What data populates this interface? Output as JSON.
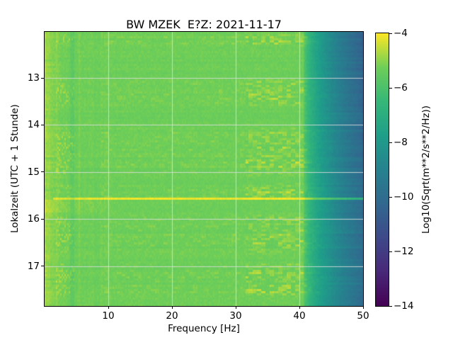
{
  "chart_data": {
    "type": "heatmap",
    "subtype": "spectrogram",
    "title": "BW MZEK  E?Z: 2021-11-17",
    "xlabel": "Frequency [Hz]",
    "ylabel": "Lokalzeit (UTC + 1 Stunde)",
    "x_range_hz": [
      0,
      50
    ],
    "x_ticks": [
      10,
      20,
      30,
      40,
      50
    ],
    "y_range_hours": [
      12.02,
      17.85
    ],
    "y_ticks": [
      13,
      14,
      15,
      16,
      17
    ],
    "grid": true,
    "grid_color": "#dcdcdc",
    "colormap": "viridis",
    "colorbar": {
      "label": "Log10(Sqrt(m**2/s**2/Hz))",
      "vmin": -14,
      "vmax": -4,
      "ticks": [
        -4,
        -6,
        -8,
        -10,
        -12,
        -14
      ]
    },
    "field_model": {
      "background_level": -5.3,
      "noise_sigma": 0.13,
      "row_stripe_amp": 0.07,
      "seed": 7,
      "microseism": {
        "f_max": 3.2,
        "boost": 0.45
      },
      "dark_line_hz": 4.35,
      "faint_bright_line_hz": 5.6,
      "hf_rolloff": {
        "f_start": 40.6,
        "drop_at_50": -4.6,
        "top_extra_drop": -0.5
      },
      "bright_line": {
        "hour": 15.58,
        "f_start": 1.3,
        "boost": 1.15,
        "hf_extra": 2.2
      },
      "afterglow": {
        "t0": 15.6,
        "t1": 15.88,
        "f_max": 13,
        "boost": 0.28
      },
      "burst_bands_hours": [
        [
          12.05,
          12.32
        ],
        [
          13.05,
          13.6
        ],
        [
          14.1,
          15.05
        ],
        [
          15.28,
          15.55
        ],
        [
          15.95,
          16.7
        ],
        [
          16.95,
          17.62
        ]
      ],
      "burst_strong": {
        "f0": 31.5,
        "f1": 41.0,
        "boost": 0.9
      },
      "burst_mid": {
        "f0": 9.0,
        "f1": 31.5,
        "boost": 0.3
      },
      "burst_tail": {
        "f0": 41.0,
        "f1": 47.0,
        "boost": 0.55
      },
      "low_speckle": {
        "f0": 1.8,
        "f1": 4.6,
        "boost": 0.55
      }
    }
  }
}
